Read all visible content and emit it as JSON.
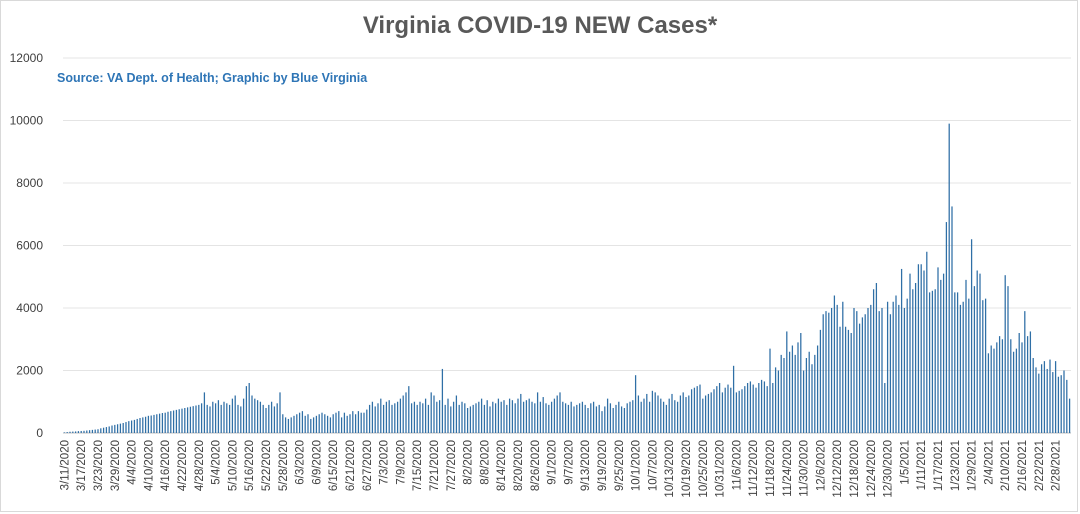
{
  "chart_data": {
    "type": "bar",
    "title": "Virginia COVID-19 NEW Cases*",
    "subtitle": "Source: VA Dept. of Health; Graphic by Blue Virginia",
    "xlabel": "",
    "ylabel": "",
    "ylim": [
      0,
      12000
    ],
    "yticks": [
      0,
      2000,
      4000,
      6000,
      8000,
      10000,
      12000
    ],
    "grid": true,
    "legend": "none",
    "bar_color": "#2f6fa6",
    "x_tick_labels": [
      "3/11/2020",
      "3/17/2020",
      "3/23/2020",
      "3/29/2020",
      "4/4/2020",
      "4/10/2020",
      "4/16/2020",
      "4/22/2020",
      "4/28/2020",
      "5/4/2020",
      "5/10/2020",
      "5/16/2020",
      "5/22/2020",
      "5/28/2020",
      "6/3/2020",
      "6/9/2020",
      "6/15/2020",
      "6/21/2020",
      "6/27/2020",
      "7/3/2020",
      "7/9/2020",
      "7/15/2020",
      "7/21/2020",
      "7/27/2020",
      "8/2/2020",
      "8/8/2020",
      "8/14/2020",
      "8/20/2020",
      "8/26/2020",
      "9/1/2020",
      "9/7/2020",
      "9/13/2020",
      "9/19/2020",
      "9/25/2020",
      "10/1/2020",
      "10/7/2020",
      "10/13/2020",
      "10/19/2020",
      "10/25/2020",
      "10/31/2020",
      "11/6/2020",
      "11/12/2020",
      "11/18/2020",
      "11/24/2020",
      "11/30/2020",
      "12/6/2020",
      "12/12/2020",
      "12/18/2020",
      "12/24/2020",
      "12/30/2020",
      "1/5/2021",
      "1/11/2021",
      "1/17/2021",
      "1/23/2021",
      "1/29/2021",
      "2/4/2021",
      "2/10/2021",
      "2/16/2021",
      "2/22/2021",
      "2/28/2021"
    ],
    "values": [
      20,
      30,
      40,
      45,
      50,
      60,
      65,
      70,
      80,
      90,
      100,
      110,
      120,
      150,
      170,
      190,
      210,
      240,
      260,
      280,
      300,
      320,
      350,
      380,
      400,
      420,
      450,
      480,
      500,
      520,
      550,
      560,
      580,
      600,
      620,
      640,
      650,
      680,
      700,
      720,
      740,
      760,
      780,
      800,
      820,
      840,
      860,
      880,
      900,
      950,
      1300,
      900,
      850,
      1000,
      950,
      1050,
      900,
      1000,
      950,
      900,
      1100,
      1200,
      900,
      850,
      1100,
      1500,
      1600,
      1200,
      1100,
      1050,
      1000,
      900,
      800,
      900,
      1000,
      850,
      950,
      1300,
      600,
      500,
      450,
      500,
      550,
      600,
      650,
      700,
      550,
      600,
      450,
      500,
      550,
      600,
      650,
      600,
      550,
      500,
      600,
      650,
      700,
      500,
      650,
      550,
      600,
      700,
      600,
      700,
      650,
      650,
      750,
      900,
      1000,
      850,
      950,
      1100,
      900,
      1000,
      1050,
      900,
      950,
      1000,
      1100,
      1200,
      1300,
      1500,
      950,
      1000,
      900,
      1000,
      950,
      1100,
      900,
      1300,
      1200,
      1000,
      1050,
      2050,
      900,
      1100,
      850,
      1000,
      1200,
      900,
      1000,
      950,
      800,
      850,
      900,
      950,
      1000,
      1100,
      900,
      1050,
      850,
      1000,
      950,
      1100,
      1000,
      1050,
      900,
      1100,
      1050,
      950,
      1100,
      1250,
      1000,
      1050,
      1100,
      1000,
      950,
      1300,
      1000,
      1150,
      950,
      900,
      1000,
      1100,
      1200,
      1300,
      1000,
      950,
      900,
      1000,
      850,
      900,
      950,
      1000,
      900,
      800,
      950,
      1000,
      850,
      900,
      700,
      850,
      1100,
      950,
      800,
      900,
      1000,
      850,
      800,
      950,
      1000,
      1050,
      1850,
      1200,
      1000,
      1100,
      1250,
      1000,
      1350,
      1300,
      1200,
      1100,
      1000,
      900,
      1100,
      1250,
      1050,
      1000,
      1200,
      1300,
      1150,
      1200,
      1400,
      1450,
      1500,
      1550,
      1100,
      1200,
      1250,
      1300,
      1400,
      1500,
      1600,
      1300,
      1450,
      1550,
      1450,
      2150,
      1300,
      1350,
      1400,
      1500,
      1600,
      1650,
      1550,
      1450,
      1600,
      1700,
      1650,
      1500,
      2700,
      1600,
      2100,
      2000,
      2500,
      2400,
      3250,
      2600,
      2800,
      2500,
      2900,
      3200,
      2000,
      2400,
      2600,
      2200,
      2500,
      2800,
      3300,
      3800,
      3900,
      3850,
      4000,
      4400,
      4100,
      3400,
      4200,
      3400,
      3300,
      3200,
      4000,
      3900,
      3500,
      3700,
      3800,
      4000,
      4100,
      4600,
      4800,
      3900,
      4000,
      1600,
      4200,
      3800,
      4200,
      4400,
      4100,
      5250,
      4000,
      4300,
      5100,
      4600,
      4800,
      5400,
      5400,
      5200,
      5800,
      4500,
      4550,
      4600,
      5300,
      4900,
      5100,
      6750,
      9900,
      7250,
      4500,
      4500,
      4100,
      4200,
      4900,
      4300,
      6200,
      4700,
      5200,
      5100,
      4250,
      4300,
      2550,
      2800,
      2700,
      2900,
      3100,
      3000,
      5050,
      4700,
      3000,
      2600,
      2700,
      3200,
      2900,
      3900,
      3100,
      3250,
      2400,
      2100,
      1900,
      2200,
      2300,
      2050,
      2350,
      1950,
      2300,
      1800,
      1850,
      2000,
      1700,
      1100
    ]
  }
}
